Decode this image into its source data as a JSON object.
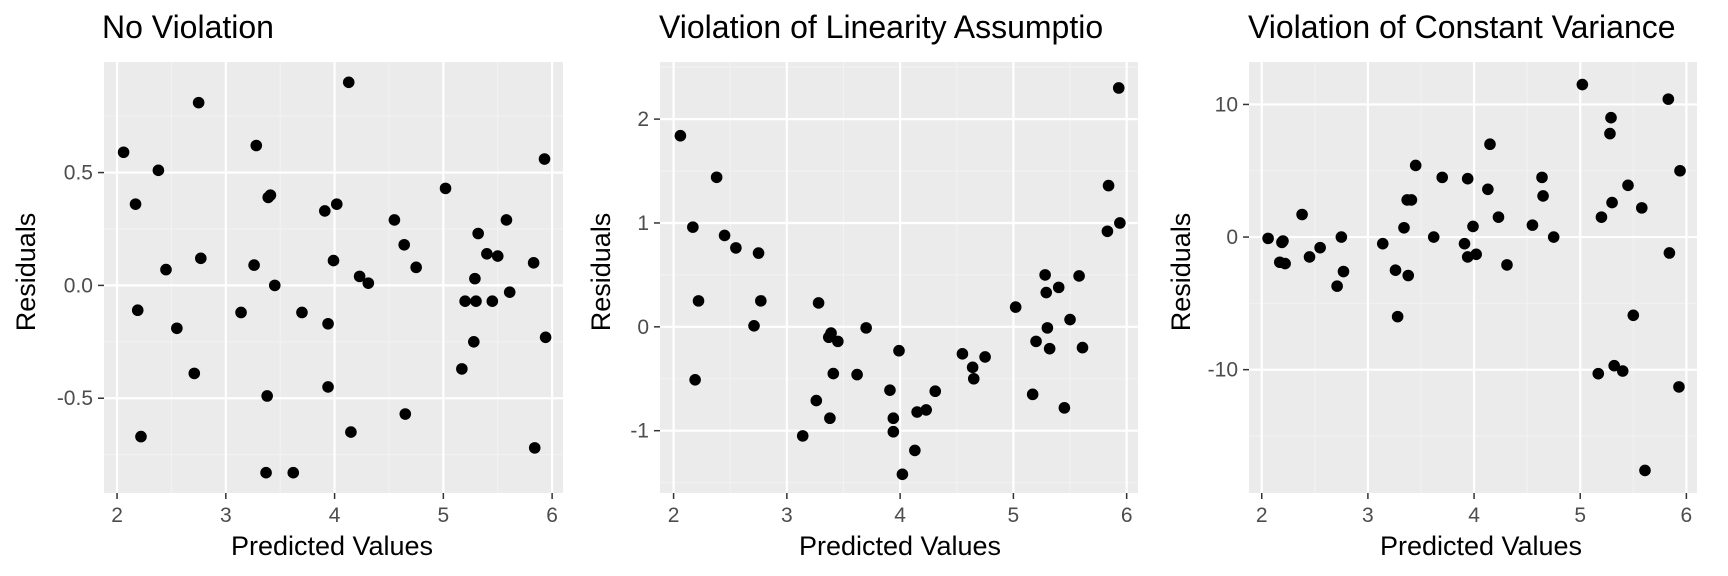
{
  "chart_data": [
    {
      "type": "scatter",
      "title": "No Violation",
      "xlabel": "Predicted Values",
      "ylabel": "Residuals",
      "xlim": [
        1.88,
        6.1
      ],
      "ylim": [
        -0.92,
        0.99
      ],
      "xticks": [
        2,
        3,
        4,
        5,
        6
      ],
      "xtick_labels": [
        "2",
        "3",
        "4",
        "5",
        "6"
      ],
      "yticks": [
        -0.5,
        0.0,
        0.5
      ],
      "ytick_labels": [
        "-0.5",
        "0.0",
        "0.5"
      ],
      "grid": true,
      "point_color": "#000000",
      "x": [
        2.06,
        2.17,
        2.19,
        2.22,
        2.38,
        2.45,
        2.55,
        2.71,
        2.75,
        2.77,
        3.14,
        3.26,
        3.28,
        3.37,
        3.38,
        3.39,
        3.41,
        3.45,
        3.62,
        3.7,
        3.91,
        3.94,
        3.94,
        3.99,
        4.02,
        4.13,
        4.15,
        4.23,
        4.31,
        4.55,
        4.64,
        4.65,
        4.75,
        5.02,
        5.17,
        5.2,
        5.28,
        5.29,
        5.3,
        5.32,
        5.4,
        5.45,
        5.5,
        5.58,
        5.61,
        5.83,
        5.84,
        5.93,
        5.94
      ],
      "y": [
        0.59,
        0.36,
        -0.11,
        -0.67,
        0.51,
        0.07,
        -0.19,
        -0.39,
        0.81,
        0.12,
        -0.12,
        0.09,
        0.62,
        -0.83,
        -0.49,
        0.39,
        0.4,
        0.0,
        -0.83,
        -0.12,
        0.33,
        -0.17,
        -0.45,
        0.11,
        0.36,
        0.9,
        -0.65,
        0.04,
        0.01,
        0.29,
        0.18,
        -0.57,
        0.08,
        0.43,
        -0.37,
        -0.07,
        -0.25,
        0.03,
        -0.07,
        0.23,
        0.14,
        -0.07,
        0.13,
        0.29,
        -0.03,
        0.1,
        -0.72,
        0.56,
        -0.23
      ]
    },
    {
      "type": "scatter",
      "title": "Violation of Linearity Assumptio",
      "xlabel": "Predicted Values",
      "ylabel": "Residuals",
      "xlim": [
        1.88,
        6.1
      ],
      "ylim": [
        -1.6,
        2.55
      ],
      "xticks": [
        2,
        3,
        4,
        5,
        6
      ],
      "xtick_labels": [
        "2",
        "3",
        "4",
        "5",
        "6"
      ],
      "yticks": [
        -1,
        0,
        1,
        2
      ],
      "ytick_labels": [
        "-1",
        "0",
        "1",
        "2"
      ],
      "grid": true,
      "point_color": "#000000",
      "x": [
        2.06,
        2.17,
        2.19,
        2.22,
        2.38,
        2.45,
        2.55,
        2.71,
        2.75,
        2.77,
        3.14,
        3.26,
        3.28,
        3.37,
        3.38,
        3.39,
        3.41,
        3.45,
        3.62,
        3.7,
        3.91,
        3.94,
        3.94,
        3.99,
        4.02,
        4.13,
        4.15,
        4.23,
        4.31,
        4.55,
        4.64,
        4.65,
        4.75,
        5.02,
        5.17,
        5.2,
        5.28,
        5.29,
        5.3,
        5.32,
        5.4,
        5.45,
        5.5,
        5.58,
        5.61,
        5.83,
        5.84,
        5.93,
        5.94
      ],
      "y": [
        1.84,
        0.96,
        -0.51,
        0.25,
        1.44,
        0.88,
        0.76,
        0.01,
        0.71,
        0.25,
        -1.05,
        -0.71,
        0.23,
        -0.1,
        -0.88,
        -0.06,
        -0.45,
        -0.14,
        -0.46,
        -0.01,
        -0.61,
        -1.01,
        -0.88,
        -0.23,
        -1.42,
        -1.19,
        -0.82,
        -0.8,
        -0.62,
        -0.26,
        -0.39,
        -0.5,
        -0.29,
        0.19,
        -0.65,
        -0.14,
        0.5,
        0.33,
        -0.01,
        -0.21,
        0.38,
        -0.78,
        0.07,
        0.49,
        -0.2,
        0.92,
        1.36,
        2.3,
        1.0
      ]
    },
    {
      "type": "scatter",
      "title": "Violation of Constant Variance",
      "xlabel": "Predicted Values",
      "ylabel": "Residuals",
      "xlim": [
        1.88,
        6.1
      ],
      "ylim": [
        -19.3,
        13.2
      ],
      "xticks": [
        2,
        3,
        4,
        5,
        6
      ],
      "xtick_labels": [
        "2",
        "3",
        "4",
        "5",
        "6"
      ],
      "yticks": [
        -10,
        0,
        10
      ],
      "ytick_labels": [
        "-10",
        "0",
        "10"
      ],
      "grid": true,
      "point_color": "#000000",
      "x": [
        2.06,
        2.17,
        2.19,
        2.22,
        2.2,
        2.38,
        2.45,
        2.55,
        2.71,
        2.75,
        2.77,
        3.14,
        3.26,
        3.28,
        3.34,
        3.37,
        3.38,
        3.41,
        3.45,
        3.62,
        3.7,
        3.91,
        3.94,
        3.94,
        3.99,
        4.02,
        4.13,
        4.15,
        4.23,
        4.31,
        4.55,
        4.64,
        4.65,
        4.75,
        5.02,
        5.17,
        5.2,
        5.28,
        5.29,
        5.3,
        5.32,
        5.4,
        5.45,
        5.5,
        5.58,
        5.61,
        5.83,
        5.84,
        5.93,
        5.94
      ],
      "y": [
        -0.1,
        -1.9,
        -0.4,
        -2.0,
        -0.3,
        1.7,
        -1.5,
        -0.8,
        -3.7,
        0.0,
        -2.6,
        -0.5,
        -2.5,
        -6.0,
        0.7,
        2.8,
        -2.9,
        2.8,
        5.4,
        0.0,
        4.5,
        -0.5,
        4.4,
        -1.5,
        0.8,
        -1.3,
        3.6,
        7.0,
        1.5,
        -2.1,
        0.9,
        4.5,
        3.1,
        0.0,
        11.5,
        -10.3,
        1.5,
        7.8,
        9.0,
        2.6,
        -9.7,
        -10.1,
        3.9,
        -5.9,
        2.2,
        -17.6,
        10.4,
        -1.2,
        -11.3,
        5.0
      ]
    }
  ]
}
